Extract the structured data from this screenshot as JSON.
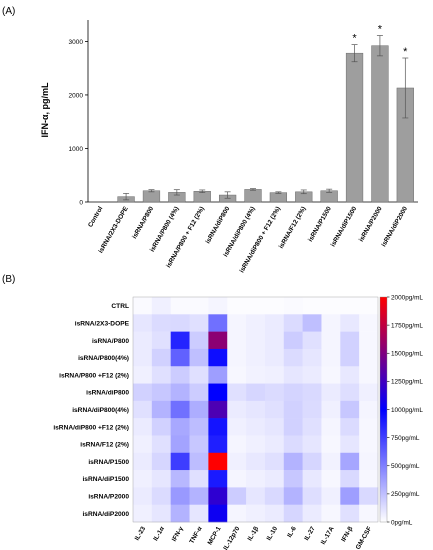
{
  "chart_data": [
    {
      "type": "bar",
      "panel_label": "(A)",
      "ylabel": "IFN-α, pg/mL",
      "ylim": [
        0,
        3400
      ],
      "yticks": [
        0,
        1000,
        2000,
        3000
      ],
      "categories": [
        "Control",
        "isRNA/2X3-DOPE",
        "isRNA/P800",
        "isRNA/P800 (4%)",
        "isRNA/P800 + F12 (2%)",
        "isRNA/diP800",
        "isRNA/diP800 (4%)",
        "isRNA/diP800 + F12 (2%)",
        "isRNA/F12 (2%)",
        "isRNA/P1500",
        "isRNA/diP1500",
        "isRNA/P2000",
        "isRNA/diP2000"
      ],
      "values": [
        0,
        100,
        210,
        180,
        200,
        130,
        235,
        175,
        190,
        210,
        2780,
        2920,
        2130
      ],
      "errors": [
        0,
        60,
        20,
        50,
        25,
        60,
        15,
        15,
        35,
        30,
        160,
        190,
        560
      ],
      "significance": [
        "",
        "",
        "",
        "",
        "",
        "",
        "",
        "",
        "",
        "",
        "*",
        "*",
        "*"
      ],
      "bar_color": "#9e9e9e",
      "grid": false
    },
    {
      "type": "heatmap",
      "panel_label": "(B)",
      "rows": [
        "CTRL",
        "isRNA/2X3-DOPE",
        "isRNA/P800",
        "isRNA/P800(4%)",
        "isRNA/P800 +F12 (2%)",
        "isRNA/diP800",
        "isRNA/diP800(4%)",
        "isRNA/diP800 +F12 (2%)",
        "isRNA/F12 (2%)",
        "isRNA/P1500",
        "isRNA/diP1500",
        "isRNA/P2000",
        "isRNA/diP2000"
      ],
      "columns": [
        "IL-23",
        "IL-1α",
        "IFN-γ",
        "TNF-α",
        "MCP-1",
        "IL-12p70",
        "IL-1β",
        "IL-10",
        "IL-6",
        "IL-27",
        "IL-17A",
        "IFN-β",
        "GM-CSF"
      ],
      "values": [
        [
          20,
          60,
          20,
          20,
          40,
          10,
          10,
          10,
          20,
          10,
          10,
          10,
          10
        ],
        [
          100,
          140,
          150,
          120,
          560,
          40,
          60,
          80,
          140,
          250,
          40,
          90,
          30
        ],
        [
          80,
          120,
          860,
          200,
          1550,
          40,
          60,
          80,
          200,
          120,
          40,
          180,
          30
        ],
        [
          80,
          180,
          620,
          250,
          950,
          40,
          60,
          80,
          140,
          100,
          40,
          180,
          30
        ],
        [
          60,
          120,
          200,
          120,
          380,
          30,
          50,
          60,
          100,
          80,
          30,
          90,
          30
        ],
        [
          180,
          220,
          300,
          200,
          1000,
          120,
          160,
          140,
          170,
          150,
          80,
          130,
          60
        ],
        [
          120,
          300,
          560,
          320,
          1300,
          80,
          100,
          120,
          180,
          140,
          60,
          220,
          40
        ],
        [
          80,
          180,
          340,
          260,
          920,
          60,
          80,
          100,
          180,
          120,
          40,
          140,
          30
        ],
        [
          60,
          120,
          360,
          220,
          880,
          40,
          60,
          80,
          140,
          100,
          30,
          100,
          30
        ],
        [
          80,
          160,
          760,
          260,
          2000,
          60,
          90,
          120,
          300,
          160,
          50,
          350,
          40
        ],
        [
          60,
          100,
          280,
          120,
          900,
          40,
          60,
          80,
          220,
          90,
          30,
          150,
          30
        ],
        [
          80,
          140,
          400,
          300,
          1180,
          200,
          100,
          150,
          300,
          130,
          60,
          380,
          150
        ],
        [
          60,
          100,
          300,
          100,
          1050,
          40,
          60,
          80,
          160,
          80,
          30,
          120,
          30
        ]
      ],
      "zlim": [
        0,
        2000
      ],
      "colorbar_ticks": [
        "0pg/mL",
        "250pg/mL",
        "500pg/mL",
        "750pg/mL",
        "1000pg/mL",
        "1250pg/mL",
        "1500pg/mL",
        "1750pg/mL",
        "2000pg/mL"
      ],
      "colorscale": [
        "#ffffff",
        "#0000ff",
        "#ff0000"
      ]
    }
  ]
}
